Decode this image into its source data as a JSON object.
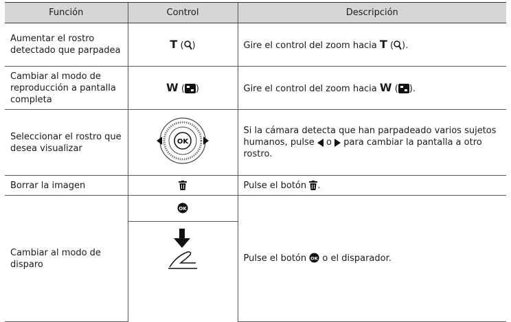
{
  "table": {
    "header": [
      "Función",
      "Control",
      "Descripción"
    ],
    "rows": [
      {
        "function": "Aumentar el rostro detectado que parpadea",
        "control": [
          "T",
          "(",
          ")"
        ],
        "description": [
          "Gire el control del zoom hacia",
          "T",
          "(",
          ")."
        ]
      },
      {
        "function": "Cambiar al modo de reproducción a pantalla completa",
        "control": [
          "W",
          "(",
          ")"
        ],
        "description": [
          "Gire el control del zoom hacia",
          "W",
          "(",
          ")."
        ]
      },
      {
        "function": "Seleccionar el rostro que desea visualizar",
        "description": [
          "Si la cámara detecta que han parpadeado varios sujetos humanos, pulse",
          "o",
          "para cambiar la pantalla a otro rostro."
        ]
      },
      {
        "function": "Borrar la imagen",
        "description": [
          "Pulse el botón",
          "."
        ]
      },
      {
        "function": "Cambiar al modo de disparo",
        "description": [
          "Pulse el botón",
          "o el disparador."
        ]
      }
    ]
  }
}
